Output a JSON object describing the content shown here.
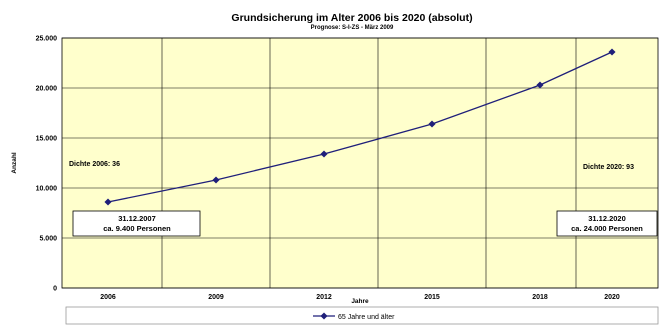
{
  "chart_data": {
    "type": "line",
    "title": "Grundsicherung im Alter 2006 bis 2020 (absolut)",
    "subtitle": "Prognose: S-I-ZS - März 2009",
    "xlabel": "Jahre",
    "ylabel": "Anzahl",
    "ylim": [
      0,
      25000
    ],
    "yticks": [
      "0",
      "5.000",
      "10.000",
      "15.000",
      "20.000",
      "25.000"
    ],
    "xticks": [
      "2006",
      "2009",
      "2012",
      "2015",
      "2018",
      "2020"
    ],
    "grid": true,
    "legend_position": "bottom",
    "plot_background": "#ffffcc",
    "line_color": "#1f1f7a",
    "series": [
      {
        "name": "65 Jahre und älter",
        "x": [
          "2006",
          "2009",
          "2012",
          "2015",
          "2018",
          "2020"
        ],
        "values": [
          8600,
          10800,
          13400,
          16400,
          20300,
          23600
        ]
      }
    ],
    "annotations": {
      "left_label": "Dichte 2006: 36",
      "right_label": "Dichte 2020: 93",
      "box_left": [
        "31.12.2007",
        "ca. 9.400 Personen"
      ],
      "box_right": [
        "31.12.2020",
        "ca. 24.000 Personen"
      ]
    }
  }
}
